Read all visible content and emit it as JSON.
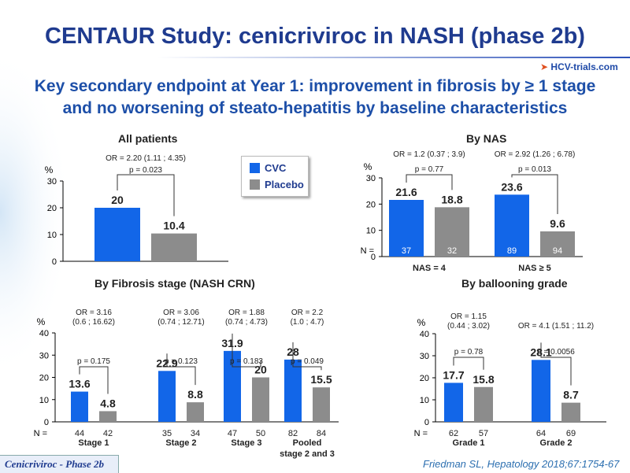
{
  "slide": {
    "title": "CENTAUR Study: cenicriviroc in NASH (phase 2b)",
    "subtitle_line1": "Key secondary endpoint at Year 1: improvement in fibrosis by ≥ 1 stage",
    "subtitle_line2": "and no worsening of steato-hepatitis by baseline characteristics",
    "logo": "HCV-trials.com",
    "footer_tag": "Cenicriviroc - Phase 2b",
    "citation": "Friedman SL, Hepatology 2018;67:1754-67"
  },
  "legend": {
    "items": [
      {
        "label": "CVC",
        "color": "#1266e8"
      },
      {
        "label": "Placebo",
        "color": "#8c8c8c"
      }
    ]
  },
  "colors": {
    "cvc": "#1266e8",
    "placebo": "#8c8c8c",
    "bracket": "#333333"
  },
  "chart_data": [
    {
      "id": "all",
      "type": "bar",
      "title": "All patients",
      "ylabel": "%",
      "ylim": [
        0,
        30
      ],
      "yticks": [
        0,
        10,
        20,
        30
      ],
      "groups": [
        {
          "label": "",
          "n": [
            "",
            ""
          ],
          "values": [
            20,
            10.4
          ],
          "value_labels": [
            "20",
            "10.4"
          ],
          "or_lines": [
            "OR = 2.20 (1.11 ; 4.35)"
          ],
          "p": "p = 0.023"
        }
      ]
    },
    {
      "id": "nas",
      "type": "bar",
      "title": "By NAS",
      "ylabel": "%",
      "ylim": [
        0,
        30
      ],
      "yticks": [
        0,
        10,
        20,
        30
      ],
      "n_prefix": "N =",
      "groups": [
        {
          "label": "NAS = 4",
          "n": [
            "37",
            "32"
          ],
          "values": [
            21.6,
            18.8
          ],
          "value_labels": [
            "21.6",
            "18.8"
          ],
          "or_lines": [
            "OR = 1.2 (0.37 ; 3.9)"
          ],
          "p": "p = 0.77"
        },
        {
          "label": "NAS ≥ 5",
          "n": [
            "89",
            "94"
          ],
          "values": [
            23.6,
            9.6
          ],
          "value_labels": [
            "23.6",
            "9.6"
          ],
          "or_lines": [
            "OR = 2.92 (1.26 ; 6.78)"
          ],
          "p": "p = 0.013"
        }
      ]
    },
    {
      "id": "fibrosis",
      "type": "bar",
      "title": "By Fibrosis stage (NASH CRN)",
      "ylabel": "%",
      "ylim": [
        0,
        40
      ],
      "yticks": [
        0,
        10,
        20,
        30,
        40
      ],
      "n_prefix": "N =",
      "groups": [
        {
          "label": "Stage 1",
          "n": [
            "44",
            "42"
          ],
          "values": [
            13.6,
            4.8
          ],
          "value_labels": [
            "13.6",
            "4.8"
          ],
          "or_lines": [
            "OR = 3.16",
            "(0.6 ; 16.62)"
          ],
          "p": "p = 0.175"
        },
        {
          "label": "Stage 2",
          "n": [
            "35",
            "34"
          ],
          "values": [
            22.9,
            8.8
          ],
          "value_labels": [
            "22.9",
            "8.8"
          ],
          "or_lines": [
            "OR = 3.06",
            "(0.74 ; 12.71)"
          ],
          "p": "p = 0.123"
        },
        {
          "label": "Stage 3",
          "n": [
            "47",
            "50"
          ],
          "values": [
            31.9,
            20
          ],
          "value_labels": [
            "31.9",
            "20"
          ],
          "or_lines": [
            "OR = 1.88",
            "(0.74 ; 4.73)"
          ],
          "p": "p = 0.183"
        },
        {
          "label": "Pooled",
          "label2": "stage 2 and 3",
          "n": [
            "82",
            "84"
          ],
          "values": [
            28,
            15.5
          ],
          "value_labels": [
            "28",
            "15.5"
          ],
          "or_lines": [
            "OR = 2.2",
            "(1.0 ; 4.7)"
          ],
          "p": "p = 0.049"
        }
      ]
    },
    {
      "id": "ballooning",
      "type": "bar",
      "title": "By ballooning grade",
      "ylabel": "%",
      "ylim": [
        0,
        40
      ],
      "yticks": [
        0,
        10,
        20,
        30,
        40
      ],
      "n_prefix": "N =",
      "groups": [
        {
          "label": "Grade 1",
          "n": [
            "62",
            "57"
          ],
          "values": [
            17.7,
            15.8
          ],
          "value_labels": [
            "17.7",
            "15.8"
          ],
          "or_lines": [
            "OR = 1.15",
            "(0.44 ; 3.02)"
          ],
          "p": "p = 0.78"
        },
        {
          "label": "Grade 2",
          "n": [
            "64",
            "69"
          ],
          "values": [
            28.1,
            8.7
          ],
          "value_labels": [
            "28.1",
            "8.7"
          ],
          "or_lines": [
            "OR = 4.1 (1.51 ; 11.2)"
          ],
          "p": "p = 0.0056"
        }
      ]
    }
  ]
}
